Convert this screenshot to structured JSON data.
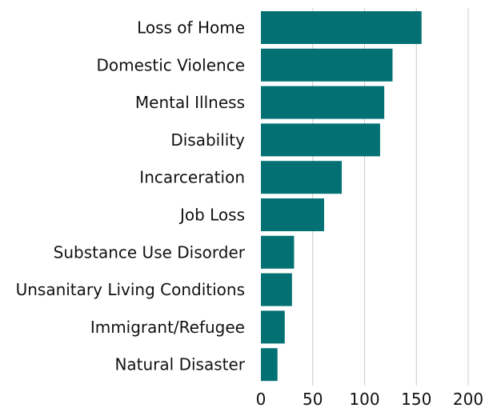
{
  "chart_data": {
    "type": "bar",
    "orientation": "horizontal",
    "categories": [
      "Loss of Home",
      "Domestic Violence",
      "Mental Illness",
      "Disability",
      "Incarceration",
      "Job Loss",
      "Substance Use Disorder",
      "Unsanitary Living Conditions",
      "Immigrant/Refugee",
      "Natural Disaster"
    ],
    "values": [
      155,
      127,
      119,
      115,
      78,
      61,
      32,
      30,
      23,
      16
    ],
    "xlim": [
      0,
      200
    ],
    "xticks": [
      0,
      50,
      100,
      150,
      200
    ],
    "xtick_labels": [
      "0",
      "50",
      "100",
      "150",
      "200"
    ],
    "grid": true,
    "bar_color": "#037173",
    "title": "",
    "xlabel": "",
    "ylabel": ""
  }
}
